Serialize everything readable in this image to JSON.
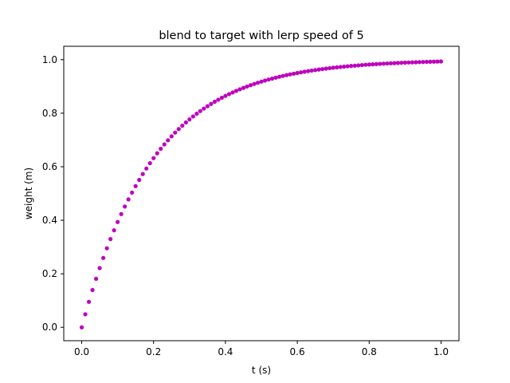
{
  "chart_data": {
    "type": "scatter",
    "title": "blend to target with lerp speed of 5",
    "xlabel": "t (s)",
    "ylabel": "weight (m)",
    "xlim": [
      -0.05,
      1.05
    ],
    "ylim": [
      -0.05,
      1.05
    ],
    "x_ticks": [
      0.0,
      0.2,
      0.4,
      0.6,
      0.8,
      1.0
    ],
    "x_tick_labels": [
      "0.0",
      "0.2",
      "0.4",
      "0.6",
      "0.8",
      "1.0"
    ],
    "y_ticks": [
      0.0,
      0.2,
      0.4,
      0.6,
      0.8,
      1.0
    ],
    "y_tick_labels": [
      "0.0",
      "0.2",
      "0.4",
      "0.6",
      "0.8",
      "1.0"
    ],
    "grid": false,
    "legend": "none",
    "marker_color": "#bf00bf",
    "series": [
      {
        "x": [
          0.0,
          0.01,
          0.02,
          0.03,
          0.04,
          0.05,
          0.06,
          0.07,
          0.08,
          0.09,
          0.1,
          0.11,
          0.12,
          0.13,
          0.14,
          0.15,
          0.16,
          0.17,
          0.18,
          0.19,
          0.2,
          0.21,
          0.22,
          0.23,
          0.24,
          0.25,
          0.26,
          0.27,
          0.28,
          0.29,
          0.3,
          0.31,
          0.32,
          0.33,
          0.34,
          0.35,
          0.36,
          0.37,
          0.38,
          0.39,
          0.4,
          0.41,
          0.42,
          0.43,
          0.44,
          0.45,
          0.46,
          0.47,
          0.48,
          0.49,
          0.5,
          0.51,
          0.52,
          0.53,
          0.54,
          0.55,
          0.56,
          0.57,
          0.58,
          0.59,
          0.6,
          0.61,
          0.62,
          0.63,
          0.64,
          0.65,
          0.66,
          0.67,
          0.68,
          0.69,
          0.7,
          0.71,
          0.72,
          0.73,
          0.74,
          0.75,
          0.76,
          0.77,
          0.78,
          0.79,
          0.8,
          0.81,
          0.82,
          0.83,
          0.84,
          0.85,
          0.86,
          0.87,
          0.88,
          0.89,
          0.9,
          0.91,
          0.92,
          0.93,
          0.94,
          0.95,
          0.96,
          0.97,
          0.98,
          0.99,
          1.0
        ],
        "y": [
          0.0,
          0.0488,
          0.0952,
          0.1393,
          0.1813,
          0.2212,
          0.2592,
          0.2953,
          0.3297,
          0.3624,
          0.3935,
          0.4231,
          0.4512,
          0.478,
          0.5034,
          0.5276,
          0.5507,
          0.5726,
          0.5934,
          0.6133,
          0.6321,
          0.6501,
          0.6671,
          0.6834,
          0.6988,
          0.7135,
          0.7275,
          0.7408,
          0.7534,
          0.7654,
          0.7769,
          0.7878,
          0.7981,
          0.808,
          0.8173,
          0.8262,
          0.8347,
          0.8428,
          0.8504,
          0.8577,
          0.8647,
          0.8713,
          0.8775,
          0.8835,
          0.8892,
          0.8946,
          0.8997,
          0.9046,
          0.9093,
          0.9137,
          0.9179,
          0.9219,
          0.9257,
          0.9293,
          0.9328,
          0.9361,
          0.9392,
          0.9422,
          0.945,
          0.9477,
          0.9502,
          0.9526,
          0.955,
          0.9571,
          0.9592,
          0.9612,
          0.9631,
          0.9649,
          0.9666,
          0.9682,
          0.9698,
          0.9713,
          0.9727,
          0.974,
          0.9753,
          0.9765,
          0.9776,
          0.9787,
          0.9798,
          0.9808,
          0.9817,
          0.9826,
          0.9834,
          0.9842,
          0.985,
          0.9857,
          0.9864,
          0.9871,
          0.9877,
          0.9883,
          0.9889,
          0.9894,
          0.9899,
          0.9904,
          0.9909,
          0.9913,
          0.9918,
          0.9922,
          0.9926,
          0.9929,
          0.9933
        ]
      }
    ]
  }
}
